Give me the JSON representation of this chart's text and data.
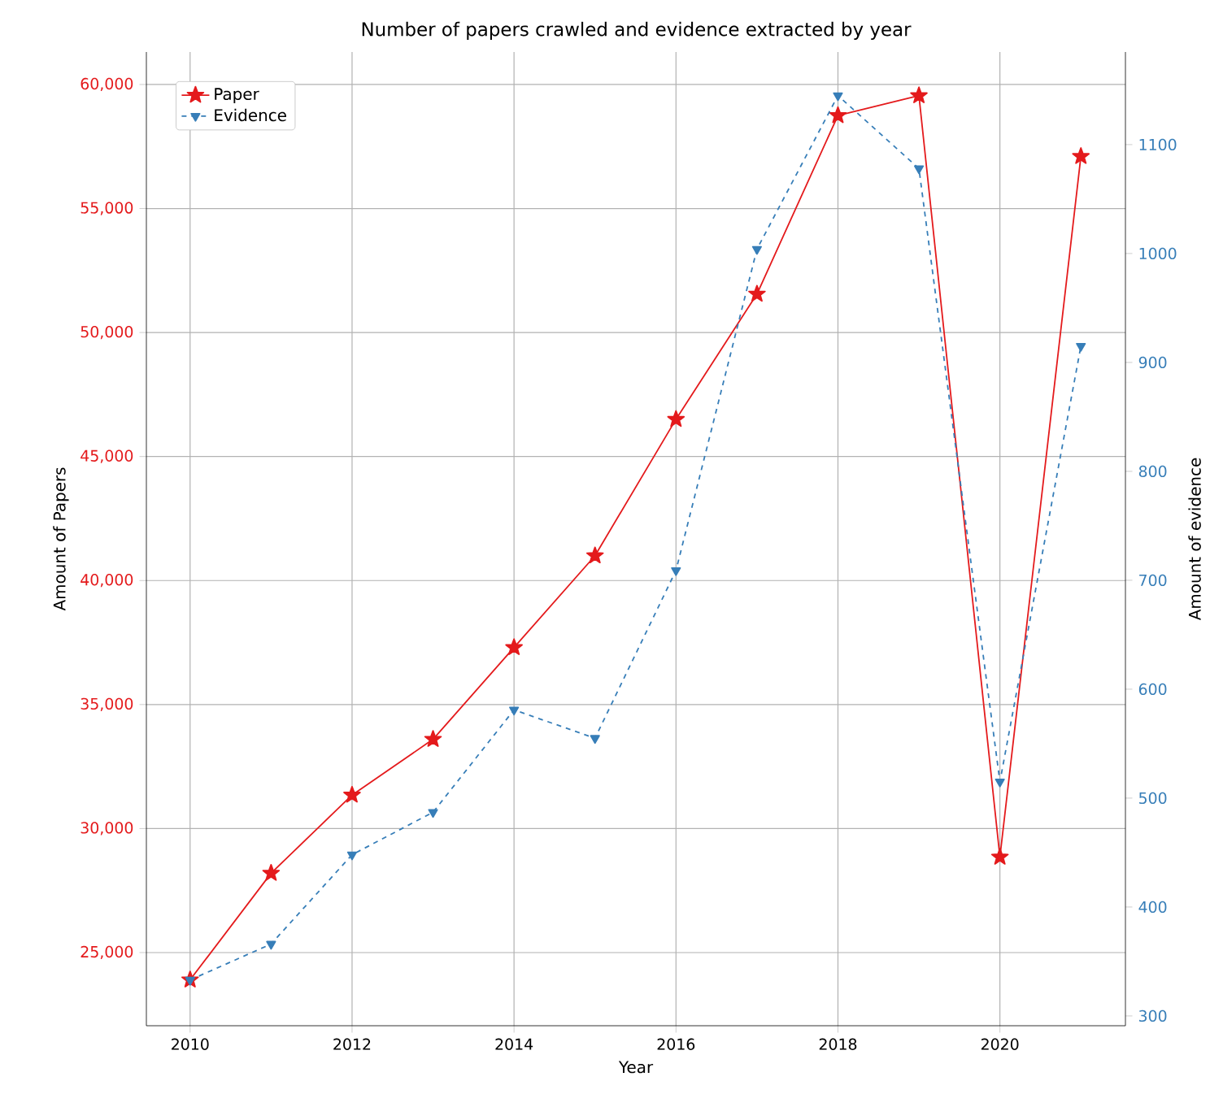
{
  "chart_data": {
    "type": "line",
    "title": "Number of papers crawled and evidence extracted by year",
    "xlabel": "Year",
    "ylabel": "Amount of Papers",
    "y2label": "Amount of evidence",
    "x": [
      2010,
      2011,
      2012,
      2013,
      2014,
      2015,
      2016,
      2017,
      2018,
      2019,
      2020,
      2021
    ],
    "series": [
      {
        "name": "Paper",
        "color": "#e41a1c",
        "marker": "star",
        "line_style": "solid",
        "values": [
          23900,
          28200,
          31350,
          33600,
          37300,
          41000,
          46500,
          51550,
          58750,
          59550,
          28850,
          57100
        ]
      },
      {
        "name": "Evidence",
        "color": "#377eb8",
        "marker": "triangle",
        "line_style": "dashed",
        "axis": "y2",
        "values": [
          333,
          366,
          448,
          487,
          581,
          555,
          709,
          1004,
          1145,
          1078,
          515,
          915
        ]
      }
    ],
    "xlim": [
      2009.46,
      2021.55
    ],
    "xticks": [
      2010,
      2012,
      2014,
      2016,
      2018,
      2020
    ],
    "ylim": [
      22050,
      61310
    ],
    "yticks": [
      {
        "value": 25000,
        "label": "25,000"
      },
      {
        "value": 30000,
        "label": "30,000"
      },
      {
        "value": 35000,
        "label": "35,000"
      },
      {
        "value": 40000,
        "label": "40,000"
      },
      {
        "value": 45000,
        "label": "45,000"
      },
      {
        "value": 50000,
        "label": "50,000"
      },
      {
        "value": 55000,
        "label": "55,000"
      },
      {
        "value": 60000,
        "label": "60,000"
      }
    ],
    "y2lim": [
      291,
      1185
    ],
    "y2ticks": [
      300,
      400,
      500,
      600,
      700,
      800,
      900,
      1000,
      1100
    ],
    "grid": true,
    "legend": "top left"
  }
}
